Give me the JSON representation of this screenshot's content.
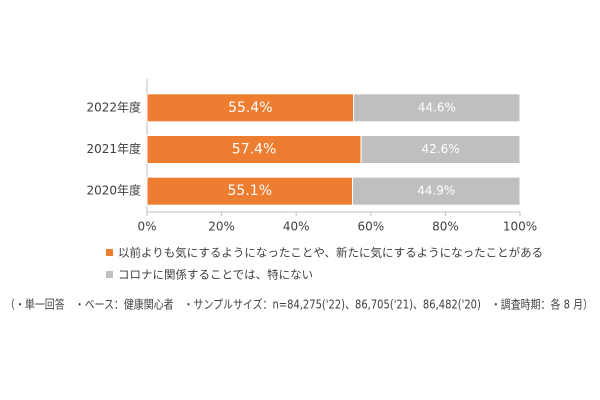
{
  "chart_data": {
    "type": "stacked_barh",
    "categories": [
      "2022年度",
      "2021年度",
      "2020年度"
    ],
    "series": [
      {
        "name": "以前よりも気にするようになったことや、新たに気にするようになったことがある",
        "color": "#ed7d31",
        "values": [
          55.4,
          57.4,
          55.1
        ],
        "value_labels": [
          "55.4%",
          "57.4%",
          "55.1%"
        ]
      },
      {
        "name": "コロナに関係することでは、特にない",
        "color": "#bfbfbf",
        "values": [
          44.6,
          42.6,
          44.9
        ],
        "value_labels": [
          "44.6%",
          "42.6%",
          "44.9%"
        ]
      }
    ],
    "xlim": [
      0,
      100
    ],
    "xticks": [
      {
        "value": 0,
        "label": "0%"
      },
      {
        "value": 20,
        "label": "20%"
      },
      {
        "value": 40,
        "label": "40%"
      },
      {
        "value": 60,
        "label": "60%"
      },
      {
        "value": 80,
        "label": "80%"
      },
      {
        "value": 100,
        "label": "100%"
      }
    ],
    "footnote": "（・単一回答　・ベース：健康関心者　・サンプルサイズ：n=84,275('22)、86,705('21)、86,482('20)　・調査時期：各 8 月）"
  }
}
